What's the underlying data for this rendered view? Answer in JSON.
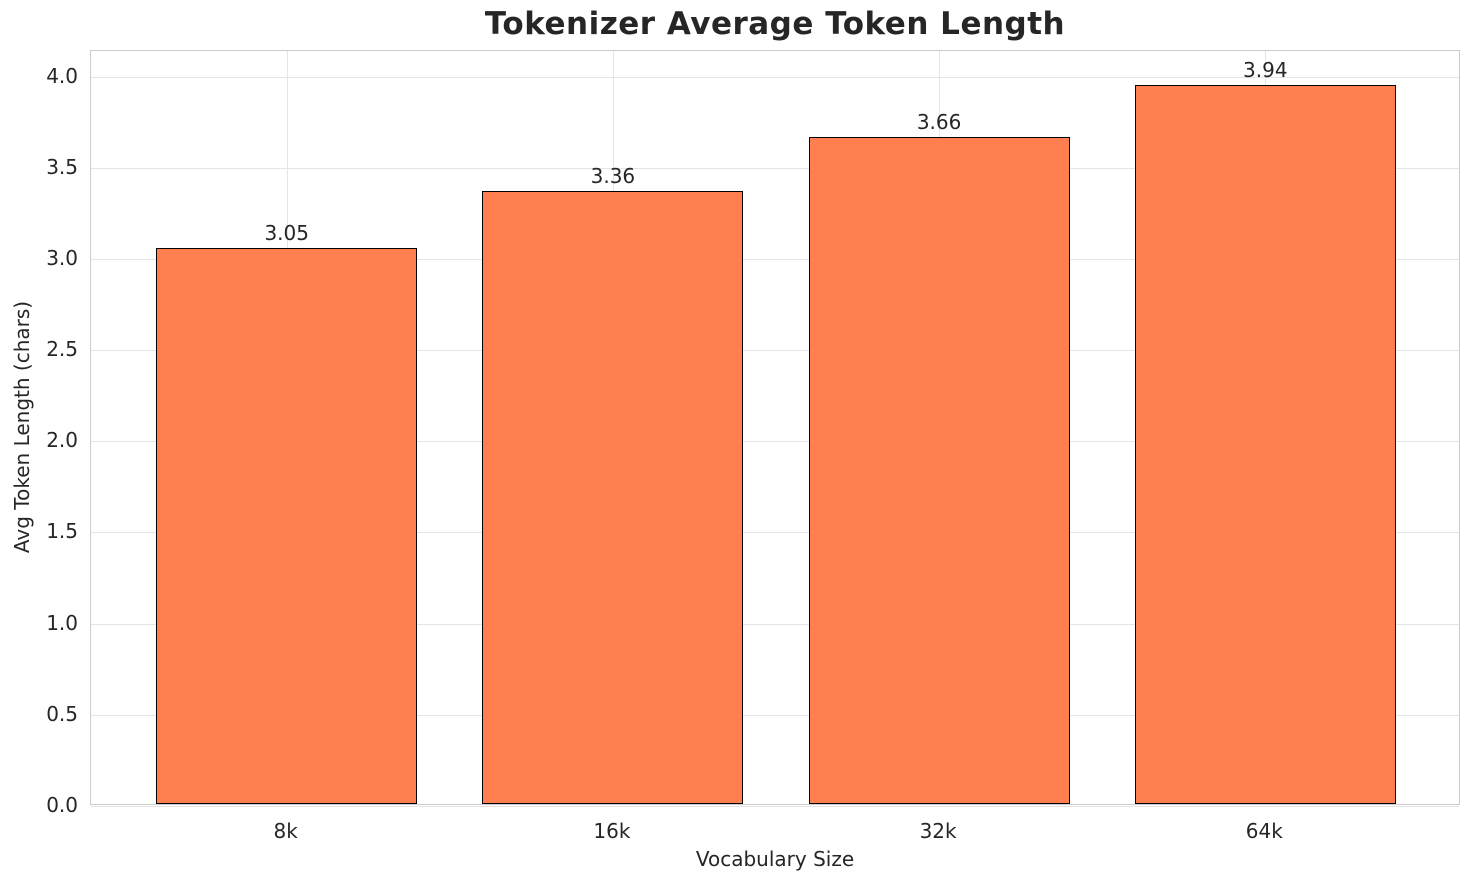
{
  "chart_data": {
    "type": "bar",
    "title": "Tokenizer Average Token Length",
    "xlabel": "Vocabulary Size",
    "ylabel": "Avg Token Length (chars)",
    "categories": [
      "8k",
      "16k",
      "32k",
      "64k"
    ],
    "values": [
      3.05,
      3.36,
      3.66,
      3.94
    ],
    "bar_value_labels": [
      "3.05",
      "3.36",
      "3.66",
      "3.94"
    ],
    "yticks": [
      0.0,
      0.5,
      1.0,
      1.5,
      2.0,
      2.5,
      3.0,
      3.5,
      4.0
    ],
    "ytick_labels": [
      "0.0",
      "0.5",
      "1.0",
      "1.5",
      "2.0",
      "2.5",
      "3.0",
      "3.5",
      "4.0"
    ],
    "ylim": [
      0,
      4.14
    ],
    "xlim": [
      -0.6,
      3.6
    ],
    "bar_width": 0.8,
    "grid": true,
    "legend_position": "none",
    "colors": {
      "bar_fill": "#FF7F50",
      "bar_edge": "#000000",
      "grid": "#e5e5e5",
      "spine": "#cccccc",
      "text": "#262626",
      "background": "#ffffff"
    }
  }
}
